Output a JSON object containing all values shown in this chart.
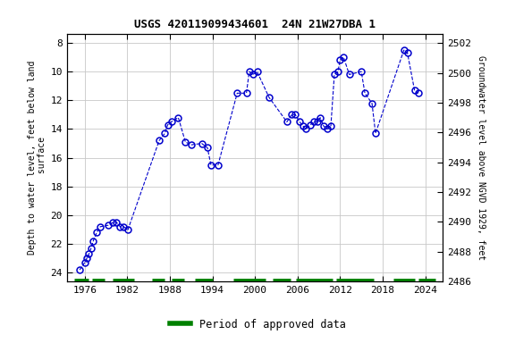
{
  "title": "USGS 420119099434601  24N 21W27DBA 1",
  "ylabel_left": "Depth to water level, feet below land\n surface",
  "ylabel_right": "Groundwater level above NGVD 1929, feet",
  "ylim_left": [
    24.6,
    7.4
  ],
  "ylim_right": [
    2486,
    2502.6
  ],
  "xlim": [
    1973.5,
    2026.5
  ],
  "xticks": [
    1976,
    1982,
    1988,
    1994,
    2000,
    2006,
    2012,
    2018,
    2024
  ],
  "yticks_left": [
    8,
    10,
    12,
    14,
    16,
    18,
    20,
    22,
    24
  ],
  "yticks_right": [
    2486,
    2488,
    2490,
    2492,
    2494,
    2496,
    2498,
    2500,
    2502
  ],
  "data_x": [
    1975.3,
    1976.0,
    1976.3,
    1976.6,
    1976.9,
    1977.2,
    1977.7,
    1978.2,
    1979.3,
    1980.0,
    1980.5,
    1981.0,
    1981.5,
    1982.1,
    1986.5,
    1987.3,
    1987.7,
    1988.2,
    1989.2,
    1990.2,
    1991.0,
    1992.5,
    1993.3,
    1993.8,
    1994.8,
    1997.5,
    1998.8,
    1999.2,
    1999.7,
    2000.3,
    2002.0,
    2004.5,
    2005.2,
    2005.7,
    2006.3,
    2006.8,
    2007.2,
    2007.8,
    2008.3,
    2008.8,
    2009.2,
    2009.7,
    2010.2,
    2010.7,
    2011.2,
    2011.7,
    2012.0,
    2012.5,
    2013.3,
    2015.0,
    2015.5,
    2016.5,
    2017.0,
    2021.0,
    2021.5,
    2022.5,
    2023.0
  ],
  "data_y": [
    23.8,
    23.3,
    23.0,
    22.7,
    22.3,
    21.8,
    21.2,
    20.8,
    20.7,
    20.5,
    20.5,
    20.8,
    20.8,
    21.0,
    14.8,
    14.3,
    13.7,
    13.5,
    13.2,
    14.9,
    15.1,
    15.0,
    15.3,
    16.5,
    16.5,
    11.5,
    11.5,
    10.0,
    10.2,
    10.0,
    11.8,
    13.5,
    13.0,
    13.0,
    13.5,
    13.8,
    14.0,
    13.7,
    13.5,
    13.5,
    13.2,
    13.8,
    14.0,
    13.8,
    10.2,
    10.0,
    9.2,
    9.0,
    10.2,
    10.0,
    11.5,
    12.2,
    14.3,
    8.5,
    8.7,
    11.3,
    11.5
  ],
  "line_color": "#0000cc",
  "marker_color": "#0000cc",
  "marker_size": 5,
  "green_segments_x": [
    [
      1974.5,
      1976.5
    ],
    [
      1977.0,
      1978.8
    ],
    [
      1980.0,
      1983.0
    ],
    [
      1985.5,
      1987.2
    ],
    [
      1988.3,
      1990.0
    ],
    [
      1991.5,
      1994.0
    ],
    [
      1997.0,
      2001.5
    ],
    [
      2002.5,
      2005.0
    ],
    [
      2005.8,
      2011.0
    ],
    [
      2011.5,
      2016.8
    ],
    [
      2019.5,
      2022.5
    ],
    [
      2023.0,
      2025.5
    ]
  ],
  "green_y": 24.53,
  "legend_label": "Period of approved data",
  "legend_color": "#008000",
  "background_color": "#ffffff",
  "grid_color": "#c8c8c8"
}
